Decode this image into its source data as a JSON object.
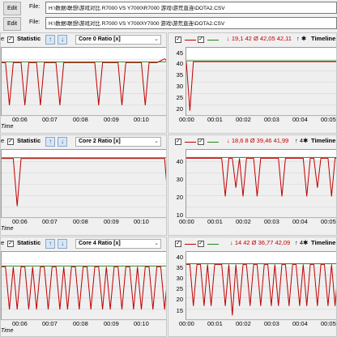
{
  "files": [
    {
      "edit_label": "Edit",
      "file_label": "File:",
      "path": "H:\\数据\\联想\\游戏对比 R7000 VS Y7000\\R7000 游戏\\游荒直连\\DOTA2.CSV"
    },
    {
      "edit_label": "Edit",
      "file_label": "File:",
      "path": "H:\\数据\\联想\\游戏对比 R7000 VS Y7000\\Y7000 游戏\\游荒直连\\DOTA2.CSV"
    }
  ],
  "colors": {
    "series_a": "#c00000",
    "series_b": "#228822",
    "grid": "#d8d8d8",
    "gray": "#dcdcdc"
  },
  "left_panels": [
    {
      "cut_label": "e",
      "statistic_label": "Statistic",
      "sensor": "Core 0 Ratio [x]",
      "time_label": "Time",
      "x_ticks": [
        "00:06",
        "00:07",
        "00:08",
        "00:09",
        "00:10"
      ]
    },
    {
      "cut_label": "e",
      "statistic_label": "Statistic",
      "sensor": "Core 2 Ratio [x]",
      "time_label": "Time",
      "x_ticks": [
        "00:06",
        "00:07",
        "00:08",
        "00:09",
        "00:10"
      ]
    },
    {
      "cut_label": "e",
      "statistic_label": "Statistic",
      "sensor": "Core 4 Ratio [x]",
      "time_label": "Time",
      "x_ticks": [
        "00:06",
        "00:07",
        "00:08",
        "00:09",
        "00:10"
      ]
    }
  ],
  "right_panels": [
    {
      "stats": "↓ 19,1 42  Ø 42,05 42,11",
      "marker": "↑ ✱",
      "timeline_label": "Timeline",
      "y_ticks": [
        "45",
        "40",
        "35",
        "30",
        "25",
        "20"
      ],
      "x_ticks": [
        "00:00",
        "00:01",
        "00:02",
        "00:03",
        "00:04",
        "00:05"
      ]
    },
    {
      "stats": "↓ 18,6 8  Ø 39,46 41,99",
      "marker": "↑ 4✱",
      "timeline_label": "Timeline",
      "y_ticks": [
        "40",
        "30",
        "20",
        "10"
      ],
      "x_ticks": [
        "00:00",
        "00:01",
        "00:02",
        "00:03",
        "00:04",
        "00:05"
      ]
    },
    {
      "stats": "↓ 14 42  Ø 36,77 42,09",
      "marker": "↑ 4✱",
      "timeline_label": "Timeline",
      "y_ticks": [
        "40",
        "35",
        "30",
        "25",
        "20",
        "15"
      ],
      "x_ticks": [
        "00:00",
        "00:01",
        "00:02",
        "00:03",
        "00:04",
        "00:05"
      ]
    }
  ],
  "chart_data": [
    {
      "type": "line",
      "sensor": "Core 0 Ratio [x]",
      "ylim": [
        15,
        48
      ],
      "series": [
        {
          "values": [
            42,
            42,
            20,
            42,
            42,
            42,
            20,
            42,
            42,
            42,
            20,
            42,
            42,
            42,
            42,
            20,
            42,
            42,
            42,
            42,
            42,
            42,
            42,
            42,
            42,
            20,
            42,
            42,
            42,
            42,
            42,
            20,
            42,
            42,
            42,
            42,
            42,
            20,
            42,
            42,
            42,
            43,
            44,
            42
          ]
        }
      ]
    },
    {
      "type": "line",
      "sensor": "Core 2 Ratio [x]",
      "ylim": [
        10,
        45
      ],
      "series": [
        {
          "values": [
            42,
            42,
            42,
            42,
            16,
            42,
            42,
            42,
            42,
            42,
            42,
            42,
            42,
            42,
            42,
            42,
            42,
            42,
            42,
            42,
            42,
            42,
            42,
            42,
            42,
            42,
            42,
            42,
            42,
            42,
            42,
            42,
            42,
            42,
            42,
            42,
            42,
            42,
            42,
            42,
            42,
            42,
            42,
            16
          ]
        }
      ]
    },
    {
      "type": "line",
      "sensor": "Core 4 Ratio [x]",
      "ylim": [
        15,
        48
      ],
      "series": [
        {
          "values": [
            42,
            42,
            20,
            42,
            20,
            42,
            42,
            20,
            42,
            20,
            42,
            42,
            20,
            42,
            42,
            20,
            42,
            20,
            42,
            42,
            20,
            42,
            42,
            20,
            42,
            42,
            20,
            42,
            20,
            42,
            42,
            20,
            42,
            42,
            20,
            42,
            20,
            42,
            42,
            20,
            42,
            42,
            20,
            42
          ]
        }
      ]
    },
    {
      "type": "line",
      "sensor": "Core 0 Ratio [x]",
      "ylim": [
        17,
        47
      ],
      "series": [
        {
          "values": [
            42,
            19,
            42,
            42,
            42,
            42,
            42,
            42,
            42,
            42,
            42,
            42,
            42,
            42,
            42,
            42,
            42,
            42,
            42,
            42,
            42,
            42,
            42,
            42,
            42,
            42,
            42,
            42,
            42,
            42,
            42,
            42,
            42,
            42,
            42,
            42,
            42,
            42,
            42,
            42,
            42,
            42,
            42,
            42
          ]
        }
      ]
    },
    {
      "type": "line",
      "sensor": "Core 2 Ratio [x]",
      "ylim": [
        8,
        45
      ],
      "series": [
        {
          "values": [
            42,
            42,
            42,
            42,
            42,
            42,
            42,
            42,
            42,
            42,
            42,
            20,
            42,
            42,
            25,
            42,
            20,
            42,
            42,
            42,
            20,
            42,
            42,
            42,
            42,
            42,
            42,
            20,
            42,
            42,
            42,
            42,
            42,
            42,
            20,
            42,
            42,
            25,
            42,
            42,
            42,
            20,
            42,
            42
          ]
        }
      ]
    },
    {
      "type": "line",
      "sensor": "Core 4 Ratio [x]",
      "ylim": [
        13,
        47
      ],
      "series": [
        {
          "values": [
            42,
            42,
            20,
            42,
            42,
            20,
            42,
            20,
            42,
            42,
            42,
            20,
            42,
            15,
            42,
            20,
            42,
            42,
            20,
            42,
            42,
            20,
            42,
            42,
            20,
            42,
            20,
            42,
            42,
            20,
            42,
            42,
            20,
            42,
            20,
            42,
            42,
            20,
            42,
            42,
            20,
            42,
            20,
            42
          ]
        }
      ]
    }
  ]
}
